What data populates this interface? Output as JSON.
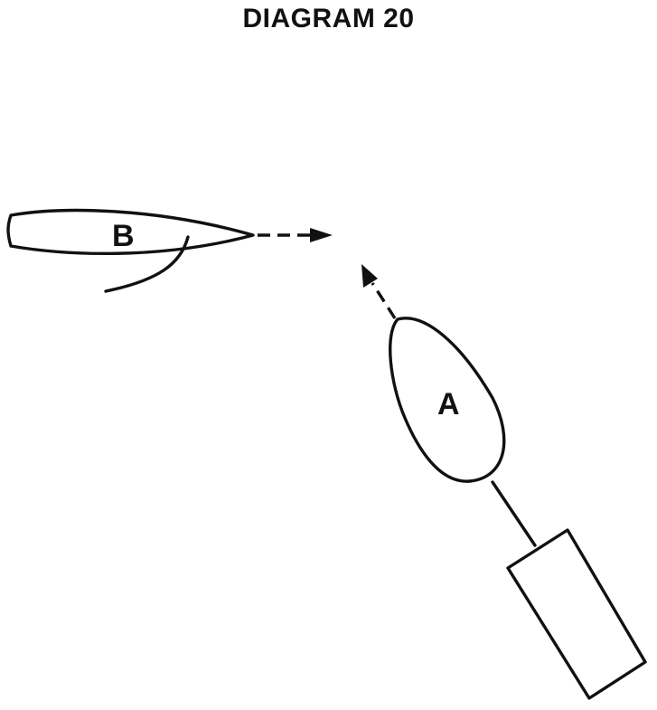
{
  "title": "DIAGRAM 20",
  "boats": {
    "b": {
      "label": "B"
    },
    "a": {
      "label": "A"
    }
  },
  "colors": {
    "ink": "#111111",
    "background": "#ffffff"
  }
}
